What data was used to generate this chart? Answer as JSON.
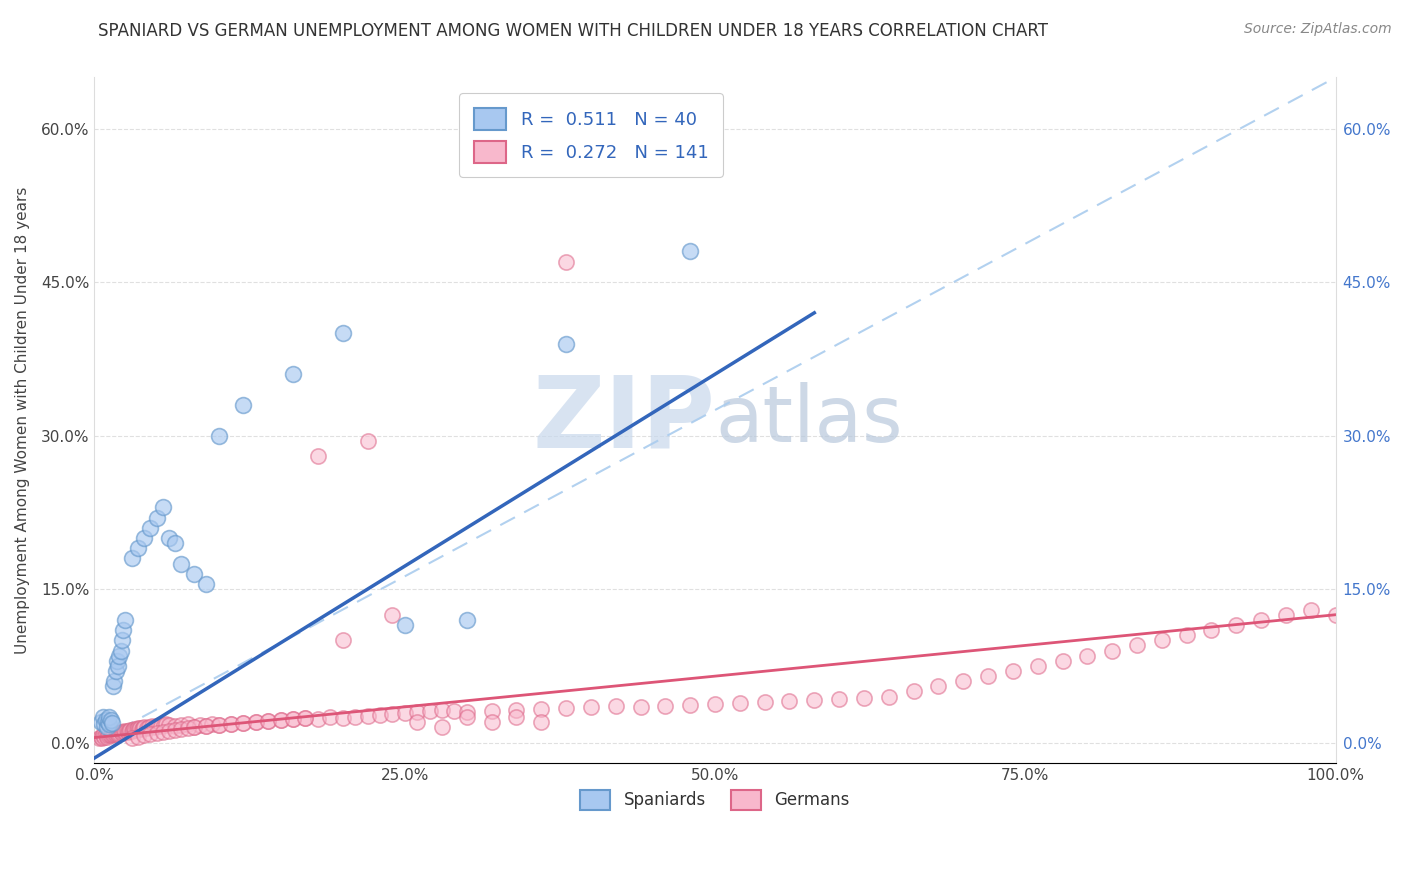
{
  "title": "SPANIARD VS GERMAN UNEMPLOYMENT AMONG WOMEN WITH CHILDREN UNDER 18 YEARS CORRELATION CHART",
  "source": "Source: ZipAtlas.com",
  "ylabel": "Unemployment Among Women with Children Under 18 years",
  "xlim": [
    0,
    1.0
  ],
  "ylim": [
    -0.02,
    0.65
  ],
  "xticks": [
    0,
    0.25,
    0.5,
    0.75,
    1.0
  ],
  "xticklabels": [
    "0.0%",
    "25.0%",
    "50.0%",
    "75.0%",
    "100.0%"
  ],
  "yticks": [
    0.0,
    0.15,
    0.3,
    0.45,
    0.6
  ],
  "yticklabels": [
    "0.0%",
    "15.0%",
    "30.0%",
    "45.0%",
    "60.0%"
  ],
  "legend_blue_label": "R =  0.511   N = 40",
  "legend_pink_label": "R =  0.272   N = 141",
  "spaniards_label": "Spaniards",
  "germans_label": "Germans",
  "blue_fill": "#A8C8F0",
  "blue_edge": "#6699CC",
  "pink_fill": "#F8B8CC",
  "pink_edge": "#DD6688",
  "blue_line_color": "#3366BB",
  "pink_line_color": "#DD5577",
  "ref_line_color": "#AACCEE",
  "watermark_zip": "ZIP",
  "watermark_atlas": "atlas",
  "watermark_color_zip": "#C5D5E8",
  "watermark_color_atlas": "#B8C8D8",
  "blue_R": 0.511,
  "blue_N": 40,
  "pink_R": 0.272,
  "pink_N": 141,
  "blue_line_x": [
    0.0,
    0.58
  ],
  "blue_line_y": [
    -0.015,
    0.42
  ],
  "pink_line_x": [
    0.0,
    1.0
  ],
  "pink_line_y": [
    0.005,
    0.125
  ],
  "ref_line_x": [
    0.0,
    1.0
  ],
  "ref_line_y": [
    0.0,
    0.65
  ],
  "spaniards_x": [
    0.005,
    0.007,
    0.008,
    0.009,
    0.01,
    0.011,
    0.012,
    0.012,
    0.013,
    0.014,
    0.015,
    0.016,
    0.017,
    0.018,
    0.019,
    0.02,
    0.021,
    0.022,
    0.023,
    0.025,
    0.03,
    0.035,
    0.04,
    0.045,
    0.05,
    0.055,
    0.06,
    0.065,
    0.07,
    0.08,
    0.09,
    0.1,
    0.12,
    0.16,
    0.2,
    0.25,
    0.3,
    0.38,
    0.43,
    0.48
  ],
  "spaniards_y": [
    0.02,
    0.025,
    0.018,
    0.022,
    0.015,
    0.02,
    0.018,
    0.025,
    0.022,
    0.019,
    0.055,
    0.06,
    0.07,
    0.08,
    0.075,
    0.085,
    0.09,
    0.1,
    0.11,
    0.12,
    0.18,
    0.19,
    0.2,
    0.21,
    0.22,
    0.23,
    0.2,
    0.195,
    0.175,
    0.165,
    0.155,
    0.3,
    0.33,
    0.36,
    0.4,
    0.115,
    0.12,
    0.39,
    0.57,
    0.48
  ],
  "germans_x": [
    0.004,
    0.005,
    0.006,
    0.007,
    0.008,
    0.009,
    0.01,
    0.011,
    0.012,
    0.013,
    0.014,
    0.015,
    0.016,
    0.017,
    0.018,
    0.019,
    0.02,
    0.021,
    0.022,
    0.023,
    0.024,
    0.025,
    0.026,
    0.027,
    0.028,
    0.029,
    0.03,
    0.031,
    0.032,
    0.033,
    0.034,
    0.035,
    0.036,
    0.037,
    0.038,
    0.039,
    0.04,
    0.042,
    0.044,
    0.046,
    0.048,
    0.05,
    0.052,
    0.054,
    0.056,
    0.058,
    0.06,
    0.065,
    0.07,
    0.075,
    0.08,
    0.085,
    0.09,
    0.095,
    0.1,
    0.11,
    0.12,
    0.13,
    0.14,
    0.15,
    0.16,
    0.17,
    0.18,
    0.19,
    0.2,
    0.21,
    0.22,
    0.23,
    0.24,
    0.25,
    0.26,
    0.27,
    0.28,
    0.29,
    0.3,
    0.32,
    0.34,
    0.36,
    0.38,
    0.4,
    0.42,
    0.44,
    0.46,
    0.48,
    0.5,
    0.52,
    0.54,
    0.56,
    0.58,
    0.6,
    0.62,
    0.64,
    0.66,
    0.68,
    0.7,
    0.72,
    0.74,
    0.76,
    0.78,
    0.8,
    0.82,
    0.84,
    0.86,
    0.88,
    0.9,
    0.92,
    0.94,
    0.96,
    0.98,
    1.0,
    0.03,
    0.035,
    0.04,
    0.045,
    0.05,
    0.055,
    0.06,
    0.065,
    0.07,
    0.075,
    0.08,
    0.09,
    0.1,
    0.11,
    0.12,
    0.13,
    0.14,
    0.15,
    0.16,
    0.17,
    0.18,
    0.2,
    0.22,
    0.24,
    0.26,
    0.28,
    0.3,
    0.32,
    0.34,
    0.36,
    0.38
  ],
  "germans_y": [
    0.005,
    0.006,
    0.005,
    0.007,
    0.006,
    0.007,
    0.006,
    0.007,
    0.008,
    0.007,
    0.008,
    0.008,
    0.009,
    0.008,
    0.009,
    0.008,
    0.009,
    0.01,
    0.009,
    0.01,
    0.011,
    0.01,
    0.011,
    0.01,
    0.011,
    0.012,
    0.011,
    0.012,
    0.013,
    0.012,
    0.013,
    0.014,
    0.013,
    0.014,
    0.013,
    0.014,
    0.015,
    0.014,
    0.015,
    0.016,
    0.015,
    0.016,
    0.017,
    0.016,
    0.017,
    0.018,
    0.017,
    0.016,
    0.017,
    0.018,
    0.015,
    0.017,
    0.016,
    0.018,
    0.017,
    0.018,
    0.019,
    0.02,
    0.021,
    0.022,
    0.023,
    0.024,
    0.023,
    0.025,
    0.024,
    0.025,
    0.026,
    0.027,
    0.028,
    0.029,
    0.03,
    0.031,
    0.032,
    0.031,
    0.03,
    0.031,
    0.032,
    0.033,
    0.034,
    0.035,
    0.036,
    0.035,
    0.036,
    0.037,
    0.038,
    0.039,
    0.04,
    0.041,
    0.042,
    0.043,
    0.044,
    0.045,
    0.05,
    0.055,
    0.06,
    0.065,
    0.07,
    0.075,
    0.08,
    0.085,
    0.09,
    0.095,
    0.1,
    0.105,
    0.11,
    0.115,
    0.12,
    0.125,
    0.13,
    0.125,
    0.005,
    0.006,
    0.007,
    0.008,
    0.009,
    0.01,
    0.011,
    0.012,
    0.013,
    0.014,
    0.015,
    0.016,
    0.017,
    0.018,
    0.019,
    0.02,
    0.021,
    0.022,
    0.023,
    0.024,
    0.28,
    0.1,
    0.295,
    0.125,
    0.02,
    0.015,
    0.025,
    0.02,
    0.025,
    0.02,
    0.47
  ]
}
